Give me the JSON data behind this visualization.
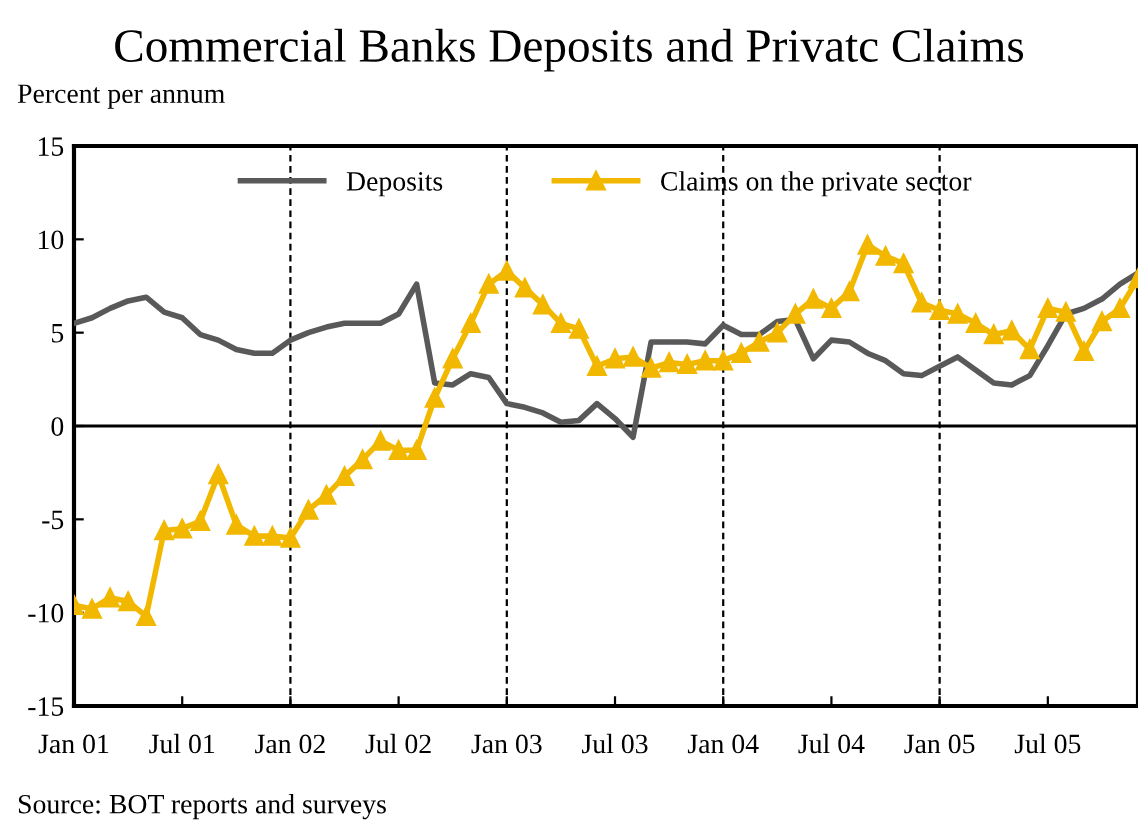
{
  "chart_data": {
    "type": "line",
    "title": "Commercial Banks Deposits and Privatc Claims",
    "ylabel": "Percent per annum",
    "x": [
      "2001-01",
      "2001-02",
      "2001-03",
      "2001-04",
      "2001-05",
      "2001-06",
      "2001-07",
      "2001-08",
      "2001-09",
      "2001-10",
      "2001-11",
      "2001-12",
      "2002-01",
      "2002-02",
      "2002-03",
      "2002-04",
      "2002-05",
      "2002-06",
      "2002-07",
      "2002-08",
      "2002-09",
      "2002-10",
      "2002-11",
      "2002-12",
      "2003-01",
      "2003-02",
      "2003-03",
      "2003-04",
      "2003-05",
      "2003-06",
      "2003-07",
      "2003-08",
      "2003-09",
      "2003-10",
      "2003-11",
      "2003-12",
      "2004-01",
      "2004-02",
      "2004-03",
      "2004-04",
      "2004-05",
      "2004-06",
      "2004-07",
      "2004-08",
      "2004-09",
      "2004-10",
      "2004-11",
      "2004-12",
      "2005-01",
      "2005-02",
      "2005-03",
      "2005-04",
      "2005-05",
      "2005-06",
      "2005-07",
      "2005-08",
      "2005-09",
      "2005-10",
      "2005-11",
      "2005-12"
    ],
    "series": [
      {
        "name": "Deposits",
        "color": "#595959",
        "marker": "none",
        "values": [
          5.5,
          5.8,
          6.3,
          6.7,
          6.9,
          6.1,
          5.8,
          4.9,
          4.6,
          4.1,
          3.9,
          3.9,
          4.6,
          5.0,
          5.3,
          5.5,
          5.5,
          5.5,
          6.0,
          7.6,
          2.3,
          2.2,
          2.8,
          2.6,
          1.2,
          1.0,
          0.7,
          0.2,
          0.3,
          1.2,
          0.4,
          -0.6,
          4.5,
          4.5,
          4.5,
          4.4,
          5.4,
          4.9,
          4.9,
          5.6,
          5.7,
          3.6,
          4.6,
          4.5,
          3.9,
          3.5,
          2.8,
          2.7,
          3.2,
          3.7,
          3.0,
          2.3,
          2.2,
          2.7,
          4.3,
          6.0,
          6.3,
          6.8,
          7.6,
          8.2
        ]
      },
      {
        "name": "Claims on the private sector",
        "color": "#f2b800",
        "marker": "triangle",
        "values": [
          -9.6,
          -9.8,
          -9.2,
          -9.4,
          -10.2,
          -5.6,
          -5.5,
          -5.1,
          -2.6,
          -5.3,
          -5.9,
          -5.9,
          -6.0,
          -4.5,
          -3.7,
          -2.7,
          -1.8,
          -0.8,
          -1.3,
          -1.3,
          1.5,
          3.6,
          5.5,
          7.6,
          8.3,
          7.4,
          6.5,
          5.5,
          5.2,
          3.2,
          3.6,
          3.7,
          3.1,
          3.4,
          3.3,
          3.5,
          3.5,
          3.9,
          4.5,
          5.0,
          6.0,
          6.8,
          6.3,
          7.2,
          9.7,
          9.1,
          8.7,
          6.6,
          6.2,
          6.0,
          5.5,
          4.9,
          5.1,
          4.1,
          6.3,
          6.1,
          4.0,
          5.6,
          6.3,
          7.9
        ]
      }
    ],
    "xlim": [
      "2001-01",
      "2005-12"
    ],
    "xticks": [
      {
        "value": "2001-01",
        "label": "Jan 01"
      },
      {
        "value": "2001-07",
        "label": "Jul 01"
      },
      {
        "value": "2002-01",
        "label": "Jan 02"
      },
      {
        "value": "2002-07",
        "label": "Jul 02"
      },
      {
        "value": "2003-01",
        "label": "Jan 03"
      },
      {
        "value": "2003-07",
        "label": "Jul 03"
      },
      {
        "value": "2004-01",
        "label": "Jan 04"
      },
      {
        "value": "2004-07",
        "label": "Jul 04"
      },
      {
        "value": "2005-01",
        "label": "Jan 05"
      },
      {
        "value": "2005-07",
        "label": "Jul 05"
      }
    ],
    "ylim": [
      -15,
      15
    ],
    "yticks": [
      -15,
      -10,
      -5,
      0,
      5,
      10,
      15
    ],
    "ref_lines": [
      {
        "axis": "y",
        "value": 0,
        "color": "#000000",
        "line_style": "solid"
      },
      {
        "axis": "x",
        "value": "2002-01",
        "color": "#000000",
        "line_style": "dashed"
      },
      {
        "axis": "x",
        "value": "2003-01",
        "color": "#000000",
        "line_style": "dashed"
      },
      {
        "axis": "x",
        "value": "2004-01",
        "color": "#000000",
        "line_style": "dashed"
      },
      {
        "axis": "x",
        "value": "2005-01",
        "color": "#000000",
        "line_style": "dashed"
      }
    ],
    "legend": "top",
    "grid": false,
    "annotations": [
      "Source: BOT reports and surveys"
    ]
  }
}
